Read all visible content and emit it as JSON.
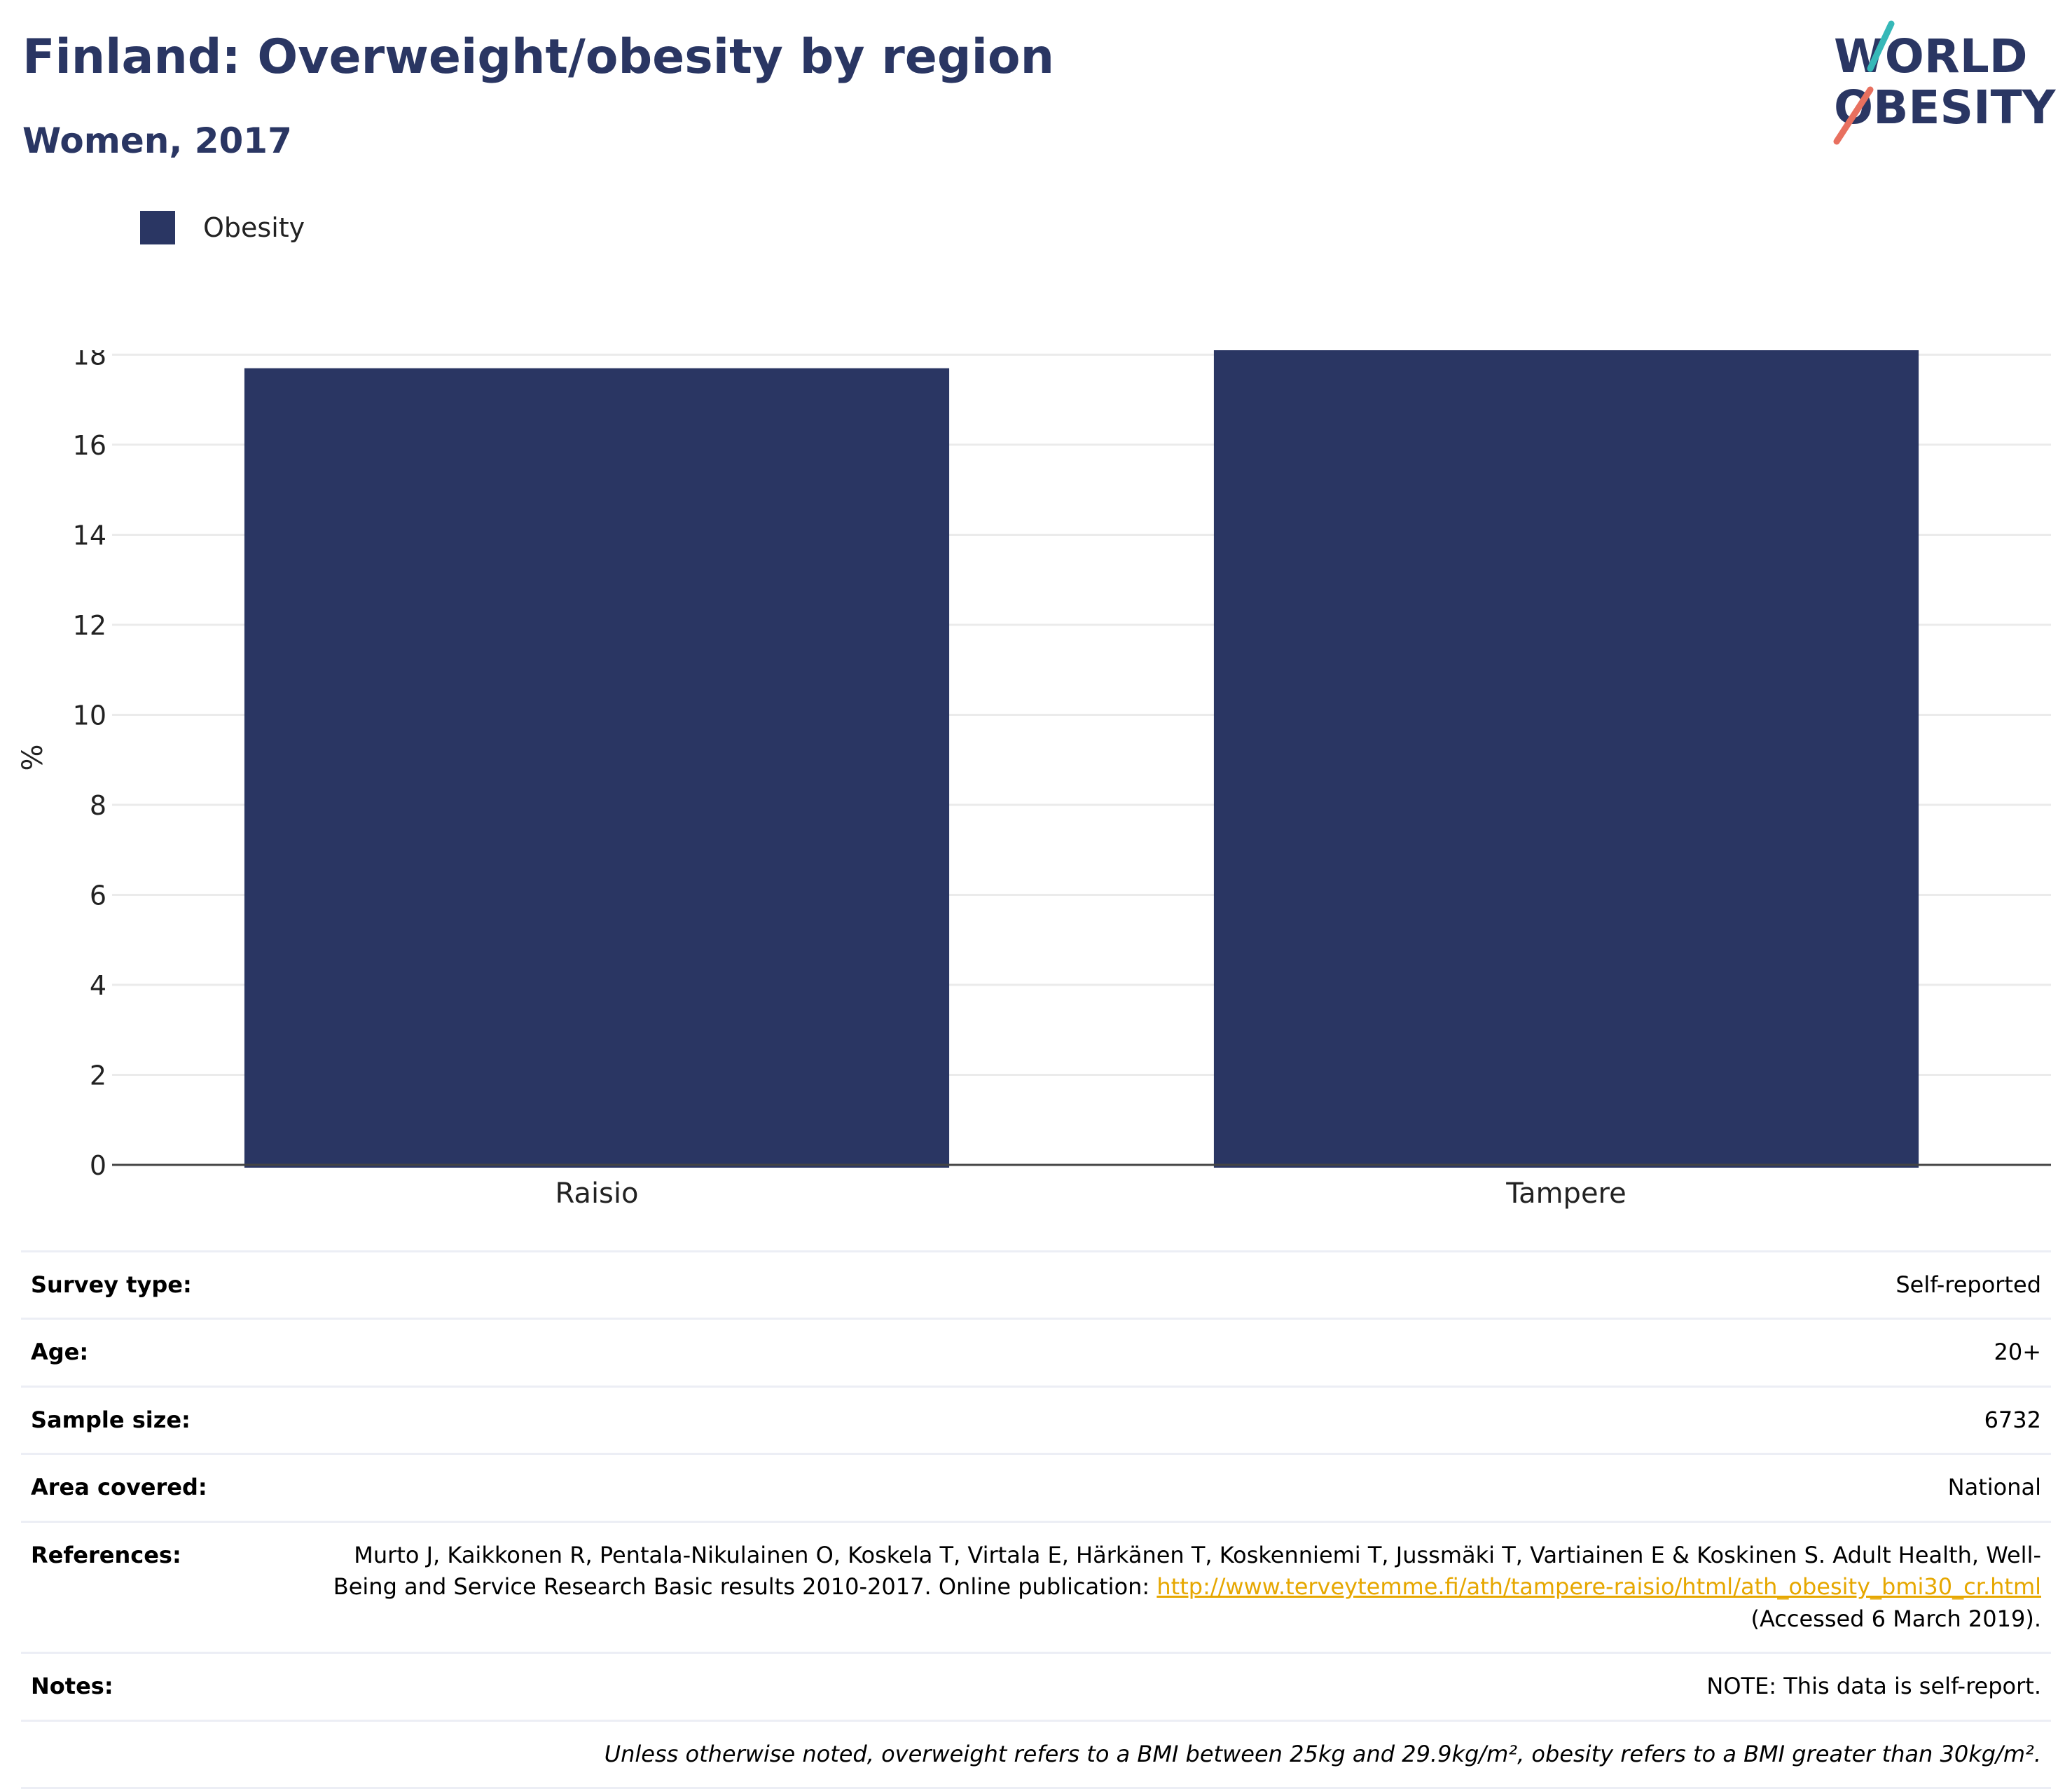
{
  "header": {
    "title": "Finland: Overweight/obesity by region",
    "subtitle": "Women, 2017"
  },
  "logo": {
    "line1": "WORLD",
    "line2": "OBESITY",
    "accent_teal": "#36b8b8",
    "accent_coral": "#e8705f"
  },
  "colors": {
    "bar": "#2a3663",
    "title": "#2a3663",
    "grid": "#ebebeb",
    "axis": "#444444",
    "link": "#e6a700"
  },
  "legend": {
    "items": [
      {
        "label": "Obesity",
        "color": "#2a3663"
      }
    ]
  },
  "chart_data": {
    "type": "bar",
    "categories": [
      "Raisio",
      "Tampere"
    ],
    "series": [
      {
        "name": "Obesity",
        "values": [
          17.7,
          18.1
        ]
      }
    ],
    "ylabel": "%",
    "xlabel": "",
    "ylim": [
      0,
      18.1
    ],
    "yticks": [
      0,
      2,
      4,
      6,
      8,
      10,
      12,
      14,
      16,
      18
    ],
    "grid": true,
    "legend_position": "top-left"
  },
  "meta": {
    "rows": [
      {
        "key": "Survey type:",
        "value": "Self-reported"
      },
      {
        "key": "Age:",
        "value": "20+"
      },
      {
        "key": "Sample size:",
        "value": "6732"
      },
      {
        "key": "Area covered:",
        "value": "National"
      }
    ],
    "references": {
      "key": "References:",
      "text_before": "Murto J, Kaikkonen R, Pentala-Nikulainen O, Koskela T, Virtala E, Härkänen T, Koskenniemi T, Jussmäki T, Vartiainen E & Koskinen S. Adult Health, Well-Being and Service Research Basic results 2010-2017. Online publication: ",
      "link": "http://www.terveytemme.fi/ath/tampere-raisio/html/ath_obesity_bmi30_cr.html",
      "text_after": " (Accessed 6 March 2019)."
    },
    "notes": {
      "key": "Notes:",
      "value": "NOTE: This data is self-report."
    },
    "footnote": "Unless otherwise noted, overweight refers to a BMI between 25kg and 29.9kg/m², obesity refers to a BMI greater than 30kg/m²."
  }
}
